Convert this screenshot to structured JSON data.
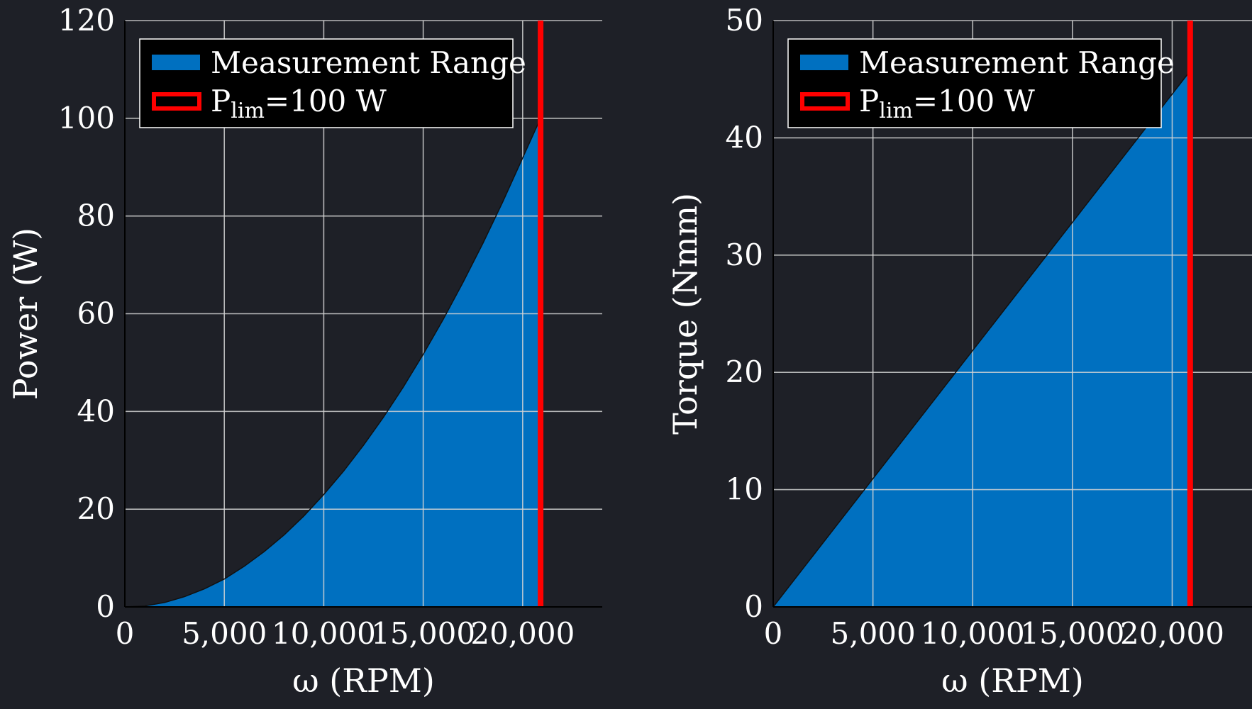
{
  "chart_data": [
    {
      "type": "area",
      "xlabel": "ω (RPM)",
      "ylabel": "Power (W)",
      "xlim": [
        0,
        24000
      ],
      "ylim": [
        0,
        120
      ],
      "xticks": [
        0,
        5000,
        10000,
        15000,
        20000
      ],
      "xtick_labels": [
        "0",
        "5,000",
        "10,000",
        "15,000",
        "20,000"
      ],
      "yticks": [
        0,
        20,
        40,
        60,
        80,
        100,
        120
      ],
      "ytick_labels": [
        "0",
        "20",
        "40",
        "60",
        "80",
        "100",
        "120"
      ],
      "grid": true,
      "legend": "top-left",
      "series": [
        {
          "name": "Measurement Range",
          "kind": "fill",
          "color": "#0070c0",
          "x": [
            0,
            1000,
            2000,
            3000,
            4000,
            5000,
            6000,
            7000,
            8000,
            9000,
            10000,
            11000,
            12000,
            13000,
            14000,
            15000,
            16000,
            17000,
            18000,
            19000,
            20000,
            20900
          ],
          "y": [
            0,
            0.2,
            0.9,
            2.1,
            3.7,
            5.7,
            8.3,
            11.3,
            14.7,
            18.6,
            23,
            27.8,
            33.1,
            38.8,
            45,
            51.7,
            58.8,
            66.4,
            74.4,
            82.9,
            91.9,
            100
          ]
        },
        {
          "name": "P",
          "name_subscript": "lim",
          "name_suffix": "=100 W",
          "kind": "vline",
          "color": "#ff0000",
          "x": 20900
        }
      ]
    },
    {
      "type": "area",
      "xlabel": "ω (RPM)",
      "ylabel": "Torque (Nmm)",
      "xlim": [
        0,
        24000
      ],
      "ylim": [
        0,
        50
      ],
      "xticks": [
        0,
        5000,
        10000,
        15000,
        20000
      ],
      "xtick_labels": [
        "0",
        "5,000",
        "10,000",
        "15,000",
        "20,000"
      ],
      "yticks": [
        0,
        10,
        20,
        30,
        40,
        50
      ],
      "ytick_labels": [
        "0",
        "10",
        "20",
        "30",
        "40",
        "50"
      ],
      "grid": true,
      "legend": "top-left",
      "series": [
        {
          "name": "Measurement Range",
          "kind": "fill",
          "color": "#0070c0",
          "x": [
            0,
            20900
          ],
          "y": [
            0,
            45.7
          ]
        },
        {
          "name": "P",
          "name_subscript": "lim",
          "name_suffix": "=100 W",
          "kind": "vline",
          "color": "#ff0000",
          "x": 20900
        }
      ]
    }
  ]
}
